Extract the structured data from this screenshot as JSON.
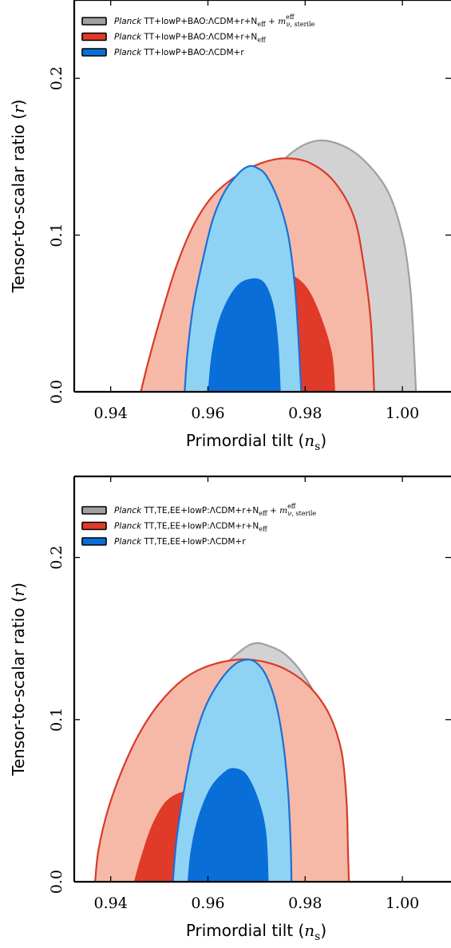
{
  "chart_data": [
    {
      "type": "contour",
      "xlabel_text": "Primordial tilt (",
      "xlabel_sym": "n",
      "xlabel_sub": "s",
      "xlabel_close": ")",
      "ylabel_text": "Tensor-to-scalar ratio (",
      "ylabel_sym": "r",
      "ylabel_close": ")",
      "xlim": [
        0.9325,
        1.01
      ],
      "ylim": [
        0,
        0.25
      ],
      "xticks": [
        "0.94",
        "0.96",
        "0.98",
        "1.00"
      ],
      "xtick_values": [
        0.94,
        0.96,
        0.98,
        1.0
      ],
      "yticks": [
        "0.0",
        "0.1",
        "0.2"
      ],
      "ytick_values": [
        0.0,
        0.1,
        0.2
      ],
      "legend": [
        {
          "italic": "Planck",
          "text": " TT+lowP+BAO:ΛCDM+r+N",
          "sub": "eff",
          "extra": " + m",
          "extra_sup": "eff",
          "extra_sub": "ν, sterile",
          "color": "#a0a0a0"
        },
        {
          "italic": "Planck",
          "text": " TT+lowP+BAO:ΛCDM+r+N",
          "sub": "eff",
          "extra": "",
          "extra_sup": "",
          "extra_sub": "",
          "color": "#e03a28"
        },
        {
          "italic": "Planck",
          "text": " TT+lowP+BAO:ΛCDM+r",
          "sub": "",
          "extra": "",
          "extra_sup": "",
          "extra_sub": "",
          "color": "#0a6ed8"
        }
      ],
      "series": [
        {
          "color_outer": "#d2d2d2",
          "color_inner": "#a9a9a9",
          "line": "#a0a0a0",
          "outer": [
            [
              0.9558,
              0
            ],
            [
              0.9568,
              0.03
            ],
            [
              0.959,
              0.06
            ],
            [
              0.963,
              0.09
            ],
            [
              0.967,
              0.115
            ],
            [
              0.972,
              0.135
            ],
            [
              0.977,
              0.152
            ],
            [
              0.982,
              0.16
            ],
            [
              0.987,
              0.158
            ],
            [
              0.992,
              0.148
            ],
            [
              0.997,
              0.128
            ],
            [
              1.0,
              0.1
            ],
            [
              1.0015,
              0.07
            ],
            [
              1.0022,
              0.04
            ],
            [
              1.0028,
              0
            ]
          ],
          "inner": [
            [
              0.9568,
              0
            ],
            [
              0.957,
              0.03
            ],
            [
              0.959,
              0.055
            ],
            [
              0.962,
              0.068
            ],
            [
              0.966,
              0.072
            ],
            [
              0.97,
              0.07
            ],
            [
              0.973,
              0.062
            ],
            [
              0.975,
              0.04
            ],
            [
              0.9755,
              0
            ]
          ]
        },
        {
          "color_outer": "#f7b9a7",
          "color_inner": "#e03a28",
          "line": "#d93a2a",
          "outer": [
            [
              0.9462,
              0
            ],
            [
              0.9478,
              0.02
            ],
            [
              0.9505,
              0.05
            ],
            [
              0.9535,
              0.08
            ],
            [
              0.957,
              0.106
            ],
            [
              0.961,
              0.125
            ],
            [
              0.966,
              0.138
            ],
            [
              0.971,
              0.146
            ],
            [
              0.976,
              0.149
            ],
            [
              0.981,
              0.146
            ],
            [
              0.986,
              0.134
            ],
            [
              0.99,
              0.112
            ],
            [
              0.992,
              0.082
            ],
            [
              0.9935,
              0.045
            ],
            [
              0.9942,
              0
            ]
          ],
          "inner": [
            [
              0.9585,
              0
            ],
            [
              0.9595,
              0.03
            ],
            [
              0.962,
              0.055
            ],
            [
              0.966,
              0.07
            ],
            [
              0.971,
              0.076
            ],
            [
              0.976,
              0.076
            ],
            [
              0.98,
              0.068
            ],
            [
              0.983,
              0.05
            ],
            [
              0.9855,
              0.025
            ],
            [
              0.9862,
              0
            ]
          ]
        },
        {
          "color_outer": "#8fd3f4",
          "color_inner": "#0a6ed8",
          "line": "#1a6fd8",
          "outer": [
            [
              0.9552,
              0
            ],
            [
              0.9558,
              0.025
            ],
            [
              0.957,
              0.055
            ],
            [
              0.959,
              0.085
            ],
            [
              0.961,
              0.11
            ],
            [
              0.9635,
              0.128
            ],
            [
              0.9665,
              0.14
            ],
            [
              0.9685,
              0.144
            ],
            [
              0.97,
              0.143
            ],
            [
              0.972,
              0.138
            ],
            [
              0.9745,
              0.122
            ],
            [
              0.9765,
              0.1
            ],
            [
              0.9778,
              0.07
            ],
            [
              0.9785,
              0.04
            ],
            [
              0.9792,
              0
            ]
          ],
          "inner": [
            [
              0.96,
              0
            ],
            [
              0.9608,
              0.025
            ],
            [
              0.9625,
              0.048
            ],
            [
              0.9655,
              0.066
            ],
            [
              0.9685,
              0.072
            ],
            [
              0.9715,
              0.07
            ],
            [
              0.9735,
              0.055
            ],
            [
              0.9745,
              0.03
            ],
            [
              0.975,
              0
            ]
          ]
        }
      ]
    },
    {
      "type": "contour",
      "xlabel_text": "Primordial tilt (",
      "xlabel_sym": "n",
      "xlabel_sub": "s",
      "xlabel_close": ")",
      "ylabel_text": "Tensor-to-scalar ratio (",
      "ylabel_sym": "r",
      "ylabel_close": ")",
      "xlim": [
        0.9325,
        1.01
      ],
      "ylim": [
        0,
        0.25
      ],
      "xticks": [
        "0.94",
        "0.96",
        "0.98",
        "1.00"
      ],
      "xtick_values": [
        0.94,
        0.96,
        0.98,
        1.0
      ],
      "yticks": [
        "0.0",
        "0.1",
        "0.2"
      ],
      "ytick_values": [
        0.0,
        0.1,
        0.2
      ],
      "legend": [
        {
          "italic": "Planck",
          "text": " TT,TE,EE+lowP:ΛCDM+r+N",
          "sub": "eff",
          "extra": " + m",
          "extra_sup": "eff",
          "extra_sub": "ν, sterile",
          "color": "#a0a0a0"
        },
        {
          "italic": "Planck",
          "text": " TT,TE,EE+lowP:ΛCDM+r+N",
          "sub": "eff",
          "extra": "",
          "extra_sup": "",
          "extra_sub": "",
          "color": "#e03a28"
        },
        {
          "italic": "Planck",
          "text": " TT,TE,EE+lowP:ΛCDM+r",
          "sub": "",
          "extra": "",
          "extra_sup": "",
          "extra_sub": "",
          "color": "#0a6ed8"
        }
      ],
      "series": [
        {
          "color_outer": "#d2d2d2",
          "color_inner": "#a9a9a9",
          "line": "#a0a0a0",
          "outer": [
            [
              0.9505,
              0
            ],
            [
              0.951,
              0.03
            ],
            [
              0.9525,
              0.06
            ],
            [
              0.955,
              0.09
            ],
            [
              0.959,
              0.115
            ],
            [
              0.963,
              0.132
            ],
            [
              0.967,
              0.143
            ],
            [
              0.9695,
              0.147
            ],
            [
              0.972,
              0.146
            ],
            [
              0.976,
              0.14
            ],
            [
              0.98,
              0.126
            ],
            [
              0.983,
              0.108
            ],
            [
              0.985,
              0.08
            ],
            [
              0.986,
              0.05
            ],
            [
              0.9868,
              0.02
            ],
            [
              0.987,
              0
            ]
          ],
          "inner": [
            [
              0.9515,
              0
            ],
            [
              0.9525,
              0.025
            ],
            [
              0.9545,
              0.045
            ],
            [
              0.9575,
              0.055
            ],
            [
              0.962,
              0.06
            ],
            [
              0.967,
              0.058
            ],
            [
              0.9715,
              0.05
            ],
            [
              0.974,
              0.035
            ],
            [
              0.975,
              0
            ]
          ]
        },
        {
          "color_outer": "#f7b9a7",
          "color_inner": "#e03a28",
          "line": "#d93a2a",
          "outer": [
            [
              0.9368,
              0
            ],
            [
              0.9375,
              0.02
            ],
            [
              0.9395,
              0.045
            ],
            [
              0.9425,
              0.07
            ],
            [
              0.946,
              0.092
            ],
            [
              0.95,
              0.11
            ],
            [
              0.955,
              0.125
            ],
            [
              0.96,
              0.133
            ],
            [
              0.966,
              0.137
            ],
            [
              0.971,
              0.136
            ],
            [
              0.976,
              0.131
            ],
            [
              0.981,
              0.12
            ],
            [
              0.985,
              0.103
            ],
            [
              0.9875,
              0.08
            ],
            [
              0.9885,
              0.05
            ],
            [
              0.9888,
              0.02
            ],
            [
              0.989,
              0
            ]
          ],
          "inner": [
            [
              0.9448,
              0
            ],
            [
              0.9462,
              0.015
            ],
            [
              0.9485,
              0.035
            ],
            [
              0.9515,
              0.05
            ],
            [
              0.9555,
              0.056
            ],
            [
              0.9605,
              0.056
            ],
            [
              0.966,
              0.054
            ],
            [
              0.971,
              0.052
            ],
            [
              0.974,
              0.046
            ],
            [
              0.9755,
              0.03
            ],
            [
              0.9765,
              0.015
            ],
            [
              0.977,
              0
            ]
          ]
        },
        {
          "color_outer": "#8fd3f4",
          "color_inner": "#0a6ed8",
          "line": "#1a6fd8",
          "outer": [
            [
              0.9528,
              0
            ],
            [
              0.9535,
              0.025
            ],
            [
              0.955,
              0.055
            ],
            [
              0.957,
              0.085
            ],
            [
              0.9595,
              0.108
            ],
            [
              0.9625,
              0.124
            ],
            [
              0.9655,
              0.134
            ],
            [
              0.968,
              0.137
            ],
            [
              0.97,
              0.135
            ],
            [
              0.972,
              0.127
            ],
            [
              0.974,
              0.11
            ],
            [
              0.9755,
              0.085
            ],
            [
              0.9765,
              0.055
            ],
            [
              0.977,
              0.025
            ],
            [
              0.9772,
              0
            ]
          ],
          "inner": [
            [
              0.9558,
              0
            ],
            [
              0.9565,
              0.02
            ],
            [
              0.958,
              0.04
            ],
            [
              0.9605,
              0.058
            ],
            [
              0.9635,
              0.068
            ],
            [
              0.9655,
              0.07
            ],
            [
              0.968,
              0.066
            ],
            [
              0.9705,
              0.05
            ],
            [
              0.972,
              0.03
            ],
            [
              0.9725,
              0
            ]
          ]
        }
      ]
    }
  ]
}
